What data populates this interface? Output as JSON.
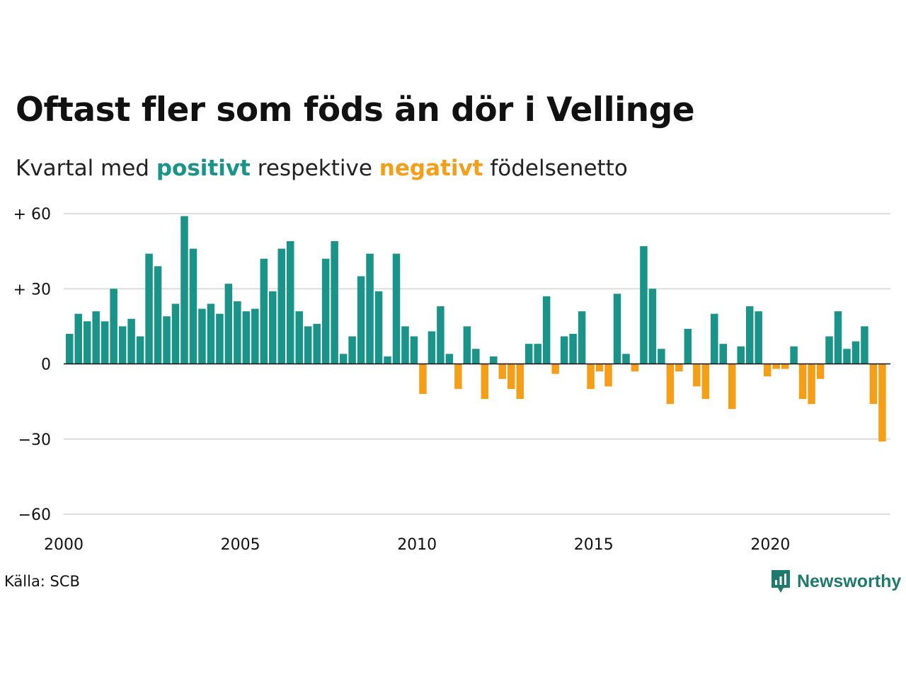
{
  "title": "Oftast fler som föds än dör i Vellinge",
  "subtitle": {
    "prefix": "Kvartal med",
    "positive_word": "positivt",
    "middle": "respektive",
    "negative_word": "negativt",
    "suffix": "födelsenetto"
  },
  "source": "Källa: SCB",
  "brand": "Newsworthy",
  "colors": {
    "positive": "#1a9488",
    "negative": "#f59e17",
    "grid": "#dddddd",
    "baseline": "#111111",
    "brand": "#1f7a6e"
  },
  "chart_data": {
    "type": "bar",
    "title": "Oftast fler som föds än dör i Vellinge",
    "x_unit": "quarter",
    "x_start": "2000 Q1",
    "x_ticks": [
      "2000",
      "2005",
      "2010",
      "2015",
      "2020"
    ],
    "y_ticks": [
      60,
      30,
      0,
      -30,
      -60
    ],
    "y_tick_labels": [
      "+ 60",
      "+ 30",
      "0",
      "−30",
      "−60"
    ],
    "ylim": [
      -60,
      60
    ],
    "grid": true,
    "values": [
      12,
      20,
      17,
      21,
      17,
      30,
      15,
      18,
      11,
      44,
      39,
      19,
      24,
      59,
      46,
      22,
      24,
      20,
      32,
      25,
      21,
      22,
      42,
      29,
      46,
      49,
      21,
      15,
      16,
      42,
      49,
      4,
      11,
      35,
      44,
      29,
      3,
      44,
      15,
      11,
      -12,
      13,
      23,
      4,
      -10,
      15,
      6,
      -14,
      3,
      -6,
      -10,
      -14,
      8,
      8,
      27,
      -4,
      11,
      12,
      21,
      -10,
      -3,
      -9,
      28,
      4,
      -3,
      47,
      30,
      6,
      -16,
      -3,
      14,
      -9,
      -14,
      20,
      8,
      -18,
      7,
      23,
      21,
      -5,
      -2,
      -2,
      7,
      -14,
      -16,
      -6,
      11,
      21,
      6,
      9,
      15,
      -16,
      -31
    ]
  }
}
